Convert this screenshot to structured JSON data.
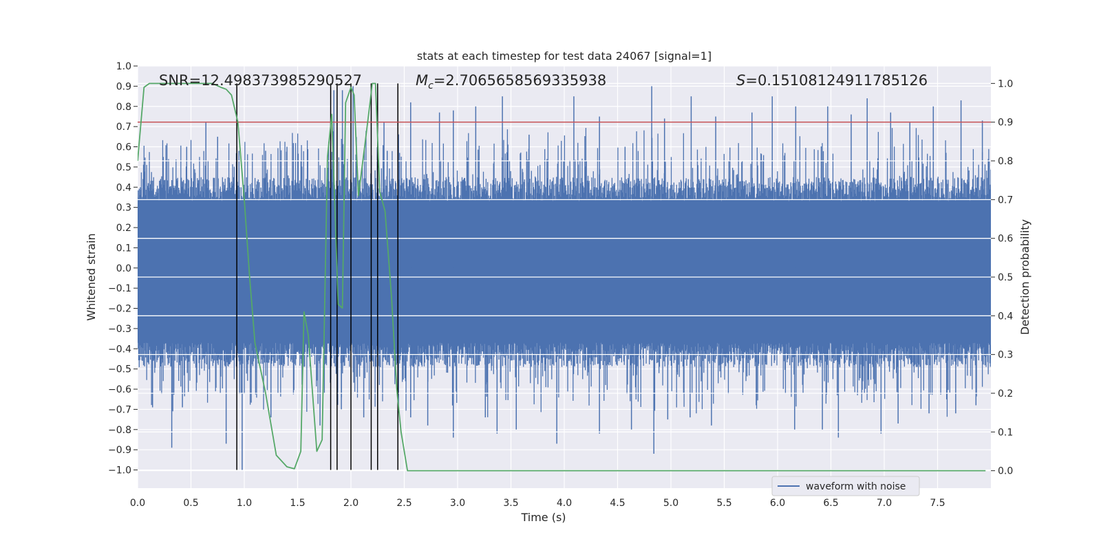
{
  "chart_data": {
    "type": "line",
    "title": "stats at each timestep for test data 24067 [signal=1]",
    "xlabel": "Time (s)",
    "ylabel": "Whitened strain",
    "y2label": "Detection probability",
    "xlim": [
      0.0,
      8.0
    ],
    "ylim": [
      -1.09,
      1.0
    ],
    "y2lim": [
      -0.045,
      1.045
    ],
    "grid": true,
    "x_ticks": [
      "0.0",
      "0.5",
      "1.0",
      "1.5",
      "2.0",
      "2.5",
      "3.0",
      "3.5",
      "4.0",
      "4.5",
      "5.0",
      "5.5",
      "6.0",
      "6.5",
      "7.0",
      "7.5"
    ],
    "y_ticks": [
      "1.0",
      "0.9",
      "0.8",
      "0.7",
      "0.6",
      "0.5",
      "0.4",
      "0.3",
      "0.2",
      "0.1",
      "0.0",
      "−0.1",
      "−0.2",
      "−0.3",
      "−0.4",
      "−0.5",
      "−0.6",
      "−0.7",
      "−0.8",
      "−0.9",
      "−1.0"
    ],
    "y2_ticks": [
      "1.0",
      "0.9",
      "0.8",
      "0.7",
      "0.6",
      "0.5",
      "0.4",
      "0.3",
      "0.2",
      "0.1",
      "0.0"
    ],
    "annotations": {
      "snr": "SNR=12.498373985290527",
      "mc_symbol": "M",
      "mc_sub": "c",
      "mc_value": "=2.7065658569335938",
      "s_symbol": "S",
      "s_value": "=0.15108124911785126"
    },
    "legend": {
      "label": "waveform with noise",
      "location": "lower-right"
    },
    "threshold": 0.9,
    "event_times": [
      0.93,
      1.81,
      1.87,
      2.0,
      2.19,
      2.25,
      2.44
    ],
    "waveform": {
      "name": "waveform with noise",
      "duration": 8.0,
      "body_envelope": 0.3,
      "max_spike": 0.9,
      "min_spike": -0.9,
      "peaks": [
        [
          0.1,
          0.42
        ],
        [
          0.24,
          0.55
        ],
        [
          0.46,
          0.6
        ],
        [
          0.64,
          0.72
        ],
        [
          0.75,
          0.65
        ],
        [
          0.95,
          0.58
        ],
        [
          1.2,
          0.58
        ],
        [
          1.4,
          0.6
        ],
        [
          1.84,
          0.88
        ],
        [
          1.92,
          0.88
        ],
        [
          2.02,
          0.9
        ],
        [
          2.31,
          0.72
        ],
        [
          2.34,
          0.58
        ],
        [
          2.56,
          0.82
        ],
        [
          2.83,
          0.77
        ],
        [
          2.96,
          0.78
        ],
        [
          3.17,
          0.8
        ],
        [
          3.42,
          0.85
        ],
        [
          3.67,
          0.66
        ],
        [
          4.09,
          0.85
        ],
        [
          4.33,
          0.75
        ],
        [
          4.57,
          0.6
        ],
        [
          4.82,
          0.9
        ],
        [
          4.94,
          0.74
        ],
        [
          5.19,
          0.85
        ],
        [
          5.42,
          0.75
        ],
        [
          5.76,
          0.77
        ],
        [
          5.95,
          0.85
        ],
        [
          6.17,
          0.8
        ],
        [
          6.47,
          0.8
        ],
        [
          6.69,
          0.76
        ],
        [
          6.84,
          0.84
        ],
        [
          7.06,
          0.77
        ],
        [
          7.24,
          0.72
        ],
        [
          7.46,
          0.8
        ],
        [
          7.72,
          0.83
        ],
        [
          7.92,
          0.73
        ]
      ],
      "troughs": [
        [
          0.14,
          -0.69
        ],
        [
          0.32,
          -0.89
        ],
        [
          0.42,
          -0.69
        ],
        [
          0.83,
          -0.87
        ],
        [
          0.98,
          -1.0
        ],
        [
          1.25,
          -0.74
        ],
        [
          1.71,
          -0.78
        ],
        [
          1.91,
          -0.7
        ],
        [
          2.12,
          -0.74
        ],
        [
          2.56,
          -0.74
        ],
        [
          2.72,
          -0.78
        ],
        [
          2.96,
          -0.84
        ],
        [
          3.26,
          -0.74
        ],
        [
          3.37,
          -0.82
        ],
        [
          3.55,
          -0.8
        ],
        [
          3.93,
          -0.87
        ],
        [
          4.33,
          -0.82
        ],
        [
          4.63,
          -0.8
        ],
        [
          4.84,
          -0.92
        ],
        [
          4.97,
          -0.75
        ],
        [
          5.18,
          -0.74
        ],
        [
          5.38,
          -0.78
        ],
        [
          5.8,
          -0.68
        ],
        [
          6.16,
          -0.8
        ],
        [
          6.42,
          -0.8
        ],
        [
          6.57,
          -0.84
        ],
        [
          6.97,
          -0.82
        ],
        [
          7.13,
          -0.77
        ],
        [
          7.42,
          -0.72
        ],
        [
          7.67,
          -0.72
        ],
        [
          7.86,
          -0.68
        ]
      ]
    },
    "probability": {
      "name": "detection probability",
      "x": [
        0.0,
        0.06,
        0.11,
        0.2,
        0.3,
        0.5,
        0.7,
        0.78,
        0.83,
        0.88,
        0.94,
        1.0,
        1.05,
        1.1,
        1.2,
        1.3,
        1.4,
        1.47,
        1.53,
        1.56,
        1.6,
        1.68,
        1.73,
        1.78,
        1.82,
        1.88,
        1.92,
        1.95,
        2.0,
        2.03,
        2.07,
        2.13,
        2.17,
        2.2,
        2.23,
        2.27,
        2.32,
        2.38,
        2.43,
        2.47,
        2.53,
        2.58,
        2.64,
        2.7,
        2.76,
        2.81,
        2.86,
        2.92,
        3.0,
        3.06,
        3.12,
        3.2,
        3.3,
        3.4,
        3.5,
        3.6,
        3.7,
        3.8,
        3.9,
        4.0,
        4.1,
        4.2,
        4.3,
        4.4,
        4.5,
        4.6,
        4.7,
        4.76,
        4.82,
        4.88,
        4.93,
        4.98,
        5.03,
        5.07,
        5.1,
        5.13,
        5.17,
        5.21,
        5.26,
        5.32,
        5.38,
        5.43,
        5.48,
        5.53,
        5.56,
        5.6,
        5.63,
        5.66,
        5.72,
        5.78,
        5.86,
        5.95,
        6.05,
        6.15,
        6.25,
        6.35,
        6.45,
        6.55,
        6.65,
        6.72,
        6.77,
        6.82,
        6.86,
        6.92,
        6.97,
        7.02,
        7.08,
        7.13,
        7.2,
        7.26,
        7.35,
        7.45,
        7.55,
        7.65,
        7.75,
        7.85,
        7.95
      ],
      "y": [
        0.8,
        0.99,
        1.0,
        1.0,
        1.0,
        1.0,
        1.0,
        0.99,
        0.985,
        0.97,
        0.9,
        0.7,
        0.5,
        0.33,
        0.2,
        0.04,
        0.01,
        0.005,
        0.05,
        0.41,
        0.35,
        0.05,
        0.08,
        0.81,
        0.92,
        0.43,
        0.42,
        0.95,
        0.99,
        0.97,
        0.71,
        0.84,
        0.93,
        1.0,
        1.0,
        0.72,
        0.67,
        0.45,
        0.21,
        0.1,
        0.0,
        0.0,
        0.0,
        0.0,
        0.0,
        0.0,
        0.0,
        0.0,
        0.0,
        0.0,
        0.0,
        0.0,
        0.0,
        0.0,
        0.0,
        0.0,
        0.0,
        0.0,
        0.0,
        0.0,
        0.0,
        0.0,
        0.0,
        0.0,
        0.0,
        0.0,
        0.0,
        0.0,
        0.0,
        0.0,
        0.0,
        0.0,
        0.0,
        0.0,
        0.0,
        0.0,
        0.0,
        0.0,
        0.0,
        0.0,
        0.0,
        0.0,
        0.0,
        0.0,
        0.0,
        0.0,
        0.0,
        0.0,
        0.0,
        0.0,
        0.0,
        0.0,
        0.0,
        0.0,
        0.0,
        0.0,
        0.0,
        0.0,
        0.0,
        0.0,
        0.0,
        0.0,
        0.0,
        0.0,
        0.0,
        0.0,
        0.0,
        0.0,
        0.0,
        0.0,
        0.0,
        0.0,
        0.0,
        0.0,
        0.0,
        0.0,
        0.0
      ]
    }
  }
}
